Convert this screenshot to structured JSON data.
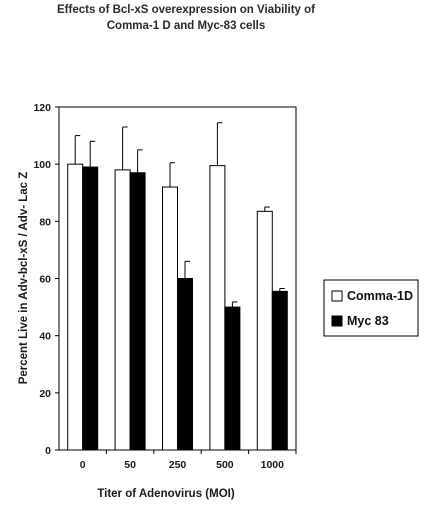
{
  "chart_data": {
    "type": "bar",
    "title_lines": [
      "Effects of Bcl-xS overexpression on Viability of",
      "Comma-1 D and Myc-83 cells"
    ],
    "xlabel": "Titer of Adenovirus (MOI)",
    "ylabel": "Percent Live in Adv-bcl-xS / Adv- Lac Z",
    "categories": [
      "0",
      "50",
      "250",
      "500",
      "1000"
    ],
    "ylim": [
      0,
      120
    ],
    "yticks": [
      0,
      20,
      40,
      60,
      80,
      100,
      120
    ],
    "grid": false,
    "legend_position": "right",
    "series": [
      {
        "name": "Comma-1D",
        "color": "#ffffff",
        "values": [
          100,
          98,
          92,
          99.5,
          83.5
        ],
        "errors": [
          10,
          15,
          8.5,
          15,
          1.5
        ]
      },
      {
        "name": "Myc 83",
        "color": "#000000",
        "values": [
          99,
          97,
          60,
          50,
          55.5
        ],
        "errors": [
          9,
          8,
          6,
          1.8,
          1
        ]
      }
    ]
  }
}
